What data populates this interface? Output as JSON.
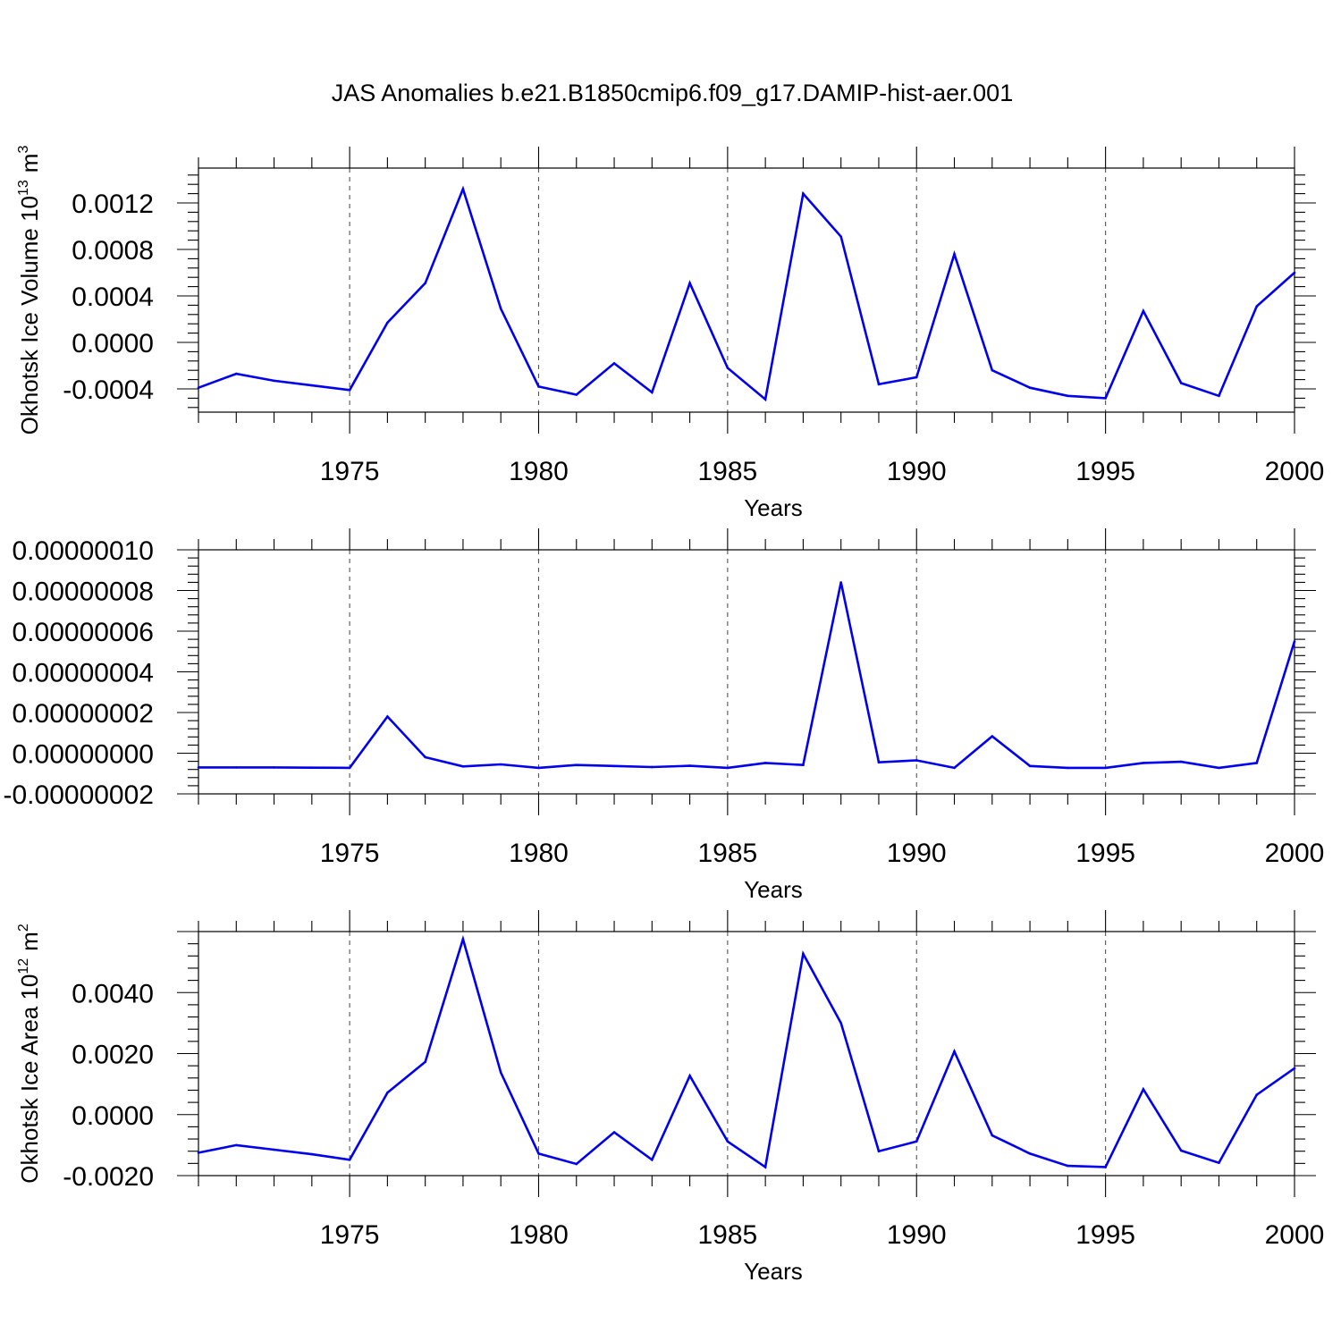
{
  "title": "JAS Anomalies b.e21.B1850cmip6.f09_g17.DAMIP-hist-aer.001",
  "colors": {
    "series": "#0000ee",
    "axis": "#000000",
    "grid": "#555555"
  },
  "chart_data": [
    {
      "type": "line",
      "title": "JAS Anomalies b.e21.B1850cmip6.f09_g17.DAMIP-hist-aer.001",
      "xlabel": "Years",
      "ylabel_main": "Okhotsk Ice Volume 10",
      "ylabel_sup": "13",
      "ylabel_unit": "m",
      "ylabel_unit_sup": "3",
      "xlim": [
        1971,
        2000
      ],
      "ylim": [
        -0.0006,
        0.0015
      ],
      "x_ticks": [
        1975,
        1980,
        1985,
        1990,
        1995,
        2000
      ],
      "x_tick_labels": [
        "1975",
        "1980",
        "1985",
        "1990",
        "1995",
        "2000"
      ],
      "y_ticks": [
        -0.0004,
        0.0,
        0.0004,
        0.0008,
        0.0012
      ],
      "y_tick_labels": [
        "-0.0004",
        "0.0000",
        "0.0004",
        "0.0008",
        "0.0012"
      ],
      "grid": "dashed vertical at major x ticks",
      "x": [
        1971,
        1972,
        1973,
        1974,
        1975,
        1976,
        1977,
        1978,
        1979,
        1980,
        1981,
        1982,
        1983,
        1984,
        1985,
        1986,
        1987,
        1988,
        1989,
        1990,
        1991,
        1992,
        1993,
        1994,
        1995,
        1996,
        1997,
        1998,
        1999,
        2000
      ],
      "values": [
        -0.00039,
        -0.00027,
        -0.00033,
        -0.00037,
        -0.00041,
        0.00017,
        0.00051,
        0.00132,
        0.00029,
        -0.00038,
        -0.00045,
        -0.00018,
        -0.00043,
        0.00051,
        -0.00022,
        -0.00049,
        0.00128,
        0.00091,
        -0.00036,
        -0.0003,
        0.00076,
        -0.00024,
        -0.00039,
        -0.00046,
        -0.00048,
        0.00027,
        -0.00035,
        -0.00046,
        0.00031,
        0.0006
      ]
    },
    {
      "type": "line",
      "xlabel": "Years",
      "xlim": [
        1971,
        2000
      ],
      "ylim": [
        -2e-08,
        1e-07
      ],
      "x_ticks": [
        1975,
        1980,
        1985,
        1990,
        1995,
        2000
      ],
      "x_tick_labels": [
        "1975",
        "1980",
        "1985",
        "1990",
        "1995",
        "2000"
      ],
      "y_ticks": [
        -2e-08,
        0.0,
        2e-08,
        4e-08,
        6e-08,
        8e-08,
        1e-07
      ],
      "y_tick_labels": [
        "-0.00000002",
        "0.00000000",
        "0.00000002",
        "0.00000004",
        "0.00000006",
        "0.00000008",
        "0.00000010"
      ],
      "grid": "dashed vertical at major x ticks",
      "x": [
        1971,
        1972,
        1973,
        1974,
        1975,
        1976,
        1977,
        1978,
        1979,
        1980,
        1981,
        1982,
        1983,
        1984,
        1985,
        1986,
        1987,
        1988,
        1989,
        1990,
        1991,
        1992,
        1993,
        1994,
        1995,
        1996,
        1997,
        1998,
        1999,
        2000
      ],
      "values": [
        -7e-09,
        -7e-09,
        -7e-09,
        -7.1e-09,
        -7.2e-09,
        1.8e-08,
        -2e-09,
        -6.5e-09,
        -5.5e-09,
        -7.2e-09,
        -5.8e-09,
        -6.3e-09,
        -6.8e-09,
        -6.2e-09,
        -7.2e-09,
        -4.8e-09,
        -5.8e-09,
        8.4e-08,
        -4.5e-09,
        -3.5e-09,
        -7.2e-09,
        8.3e-09,
        -6.3e-09,
        -7.2e-09,
        -7.2e-09,
        -4.8e-09,
        -4.2e-09,
        -7.2e-09,
        -4.8e-09,
        5.5e-08
      ]
    },
    {
      "type": "line",
      "xlabel": "Years",
      "ylabel_main": "Okhotsk Ice Area 10",
      "ylabel_sup": "12",
      "ylabel_unit": "m",
      "ylabel_unit_sup": "2",
      "xlim": [
        1971,
        2000
      ],
      "ylim": [
        -0.002,
        0.006
      ],
      "x_ticks": [
        1975,
        1980,
        1985,
        1990,
        1995,
        2000
      ],
      "x_tick_labels": [
        "1975",
        "1980",
        "1985",
        "1990",
        "1995",
        "2000"
      ],
      "y_ticks": [
        -0.002,
        0.0,
        0.002,
        0.004
      ],
      "y_tick_labels": [
        "-0.0020",
        "0.0000",
        "0.0020",
        "0.0040"
      ],
      "grid": "dashed vertical at major x ticks",
      "x": [
        1971,
        1972,
        1973,
        1974,
        1975,
        1976,
        1977,
        1978,
        1979,
        1980,
        1981,
        1982,
        1983,
        1984,
        1985,
        1986,
        1987,
        1988,
        1989,
        1990,
        1991,
        1992,
        1993,
        1994,
        1995,
        1996,
        1997,
        1998,
        1999,
        2000
      ],
      "values": [
        -0.00125,
        -0.001,
        -0.00115,
        -0.0013,
        -0.00148,
        0.00072,
        0.00173,
        0.00575,
        0.00138,
        -0.00128,
        -0.00162,
        -0.00058,
        -0.00148,
        0.00127,
        -0.00088,
        -0.00172,
        0.00527,
        0.003,
        -0.0012,
        -0.00088,
        0.00207,
        -0.00068,
        -0.00128,
        -0.00168,
        -0.00172,
        0.00083,
        -0.00118,
        -0.00158,
        0.00065,
        0.00152
      ]
    }
  ]
}
